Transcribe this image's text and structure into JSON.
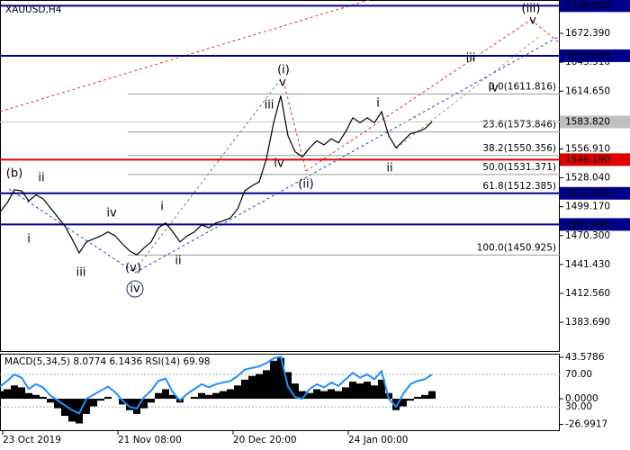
{
  "chart_data": [
    {
      "type": "line",
      "title": "XAUUSD,H4",
      "color": "#000000",
      "values": [
        1494,
        1503,
        1516,
        1515,
        1505,
        1511,
        1507,
        1498,
        1489,
        1480,
        1467,
        1453,
        1464,
        1467,
        1470,
        1474,
        1470,
        1462,
        1455,
        1451,
        1458,
        1464,
        1478,
        1483,
        1474,
        1464,
        1470,
        1474,
        1481,
        1478,
        1483,
        1485,
        1488,
        1497,
        1515,
        1520,
        1524,
        1547,
        1583,
        1610,
        1570,
        1554,
        1549,
        1558,
        1565,
        1561,
        1567,
        1563,
        1574,
        1588,
        1583,
        1588,
        1583,
        1594,
        1570,
        1558,
        1565,
        1572,
        1574,
        1577,
        1584
      ],
      "xlim": [
        0,
        77.75
      ],
      "xticks": [
        {
          "value": 0,
          "label": "23 Oct 2019"
        },
        {
          "value": 16,
          "label": "21 Nov 08:00"
        },
        {
          "value": 32,
          "label": "20 Dec 20:00"
        },
        {
          "value": 48,
          "label": "24 Jan 00:00"
        }
      ],
      "ylim": [
        1355.0,
        1705.7
      ],
      "yticks": [
        {
          "value": 1672.39,
          "label": "1672.390"
        },
        {
          "value": 1643.51,
          "label": "1643.510"
        },
        {
          "value": 1614.65,
          "label": "1614.650"
        },
        {
          "value": 1556.91,
          "label": "1556.910"
        },
        {
          "value": 1528.04,
          "label": "1528.040"
        },
        {
          "value": 1499.17,
          "label": "1499.170"
        },
        {
          "value": 1470.3,
          "label": "1470.300"
        },
        {
          "value": 1441.43,
          "label": "1441.430"
        },
        {
          "value": 1412.56,
          "label": "1412.560"
        },
        {
          "value": 1383.69,
          "label": "1383.690"
        }
      ],
      "levels": [
        {
          "value": 1700,
          "label": "1700.000",
          "color": "#00008b"
        },
        {
          "value": 1650,
          "label": "1650.000",
          "color": "#00008b"
        },
        {
          "value": 1546.19,
          "label": "1546.190",
          "color": "#e00000"
        },
        {
          "value": 1512.55,
          "label": "1512.550",
          "color": "#00008b"
        },
        {
          "value": 1481.446,
          "label": "1481.446",
          "color": "#00008b"
        }
      ],
      "current_price": {
        "value": 1583.82,
        "label": "1583.820"
      },
      "fib_levels": [
        {
          "value": 1611.816,
          "label": "0.0(1611.816)"
        },
        {
          "value": 1573.846,
          "label": "23.6(1573.846)"
        },
        {
          "value": 1550.356,
          "label": "38.2(1550.356)"
        },
        {
          "value": 1531.371,
          "label": "50.0(1531.371)"
        },
        {
          "value": 1512.385,
          "label": "61.8(1512.385)"
        },
        {
          "value": 1450.925,
          "label": "100.0(1450.925)"
        }
      ],
      "annotations": [
        "(b)",
        "ii",
        "i",
        "iv",
        "iii",
        "(v)",
        "iv",
        "i",
        "ii",
        "iii",
        "(i)",
        "v",
        "iv",
        "(ii)",
        "i",
        "ii",
        "iii",
        "iv",
        "v",
        "(iii)"
      ]
    },
    {
      "type": "macd",
      "title": "MACD(5,34,5) 8.0774 6.1436 RSI(14) 69.98",
      "series": [
        {
          "color": "#000000",
          "values": [
            8,
            10,
            14,
            12,
            6,
            4,
            2,
            -4,
            -10,
            -18,
            -24,
            -26,
            -16,
            -8,
            -2,
            2,
            0,
            -6,
            -12,
            -16,
            -10,
            -4,
            6,
            10,
            4,
            -4,
            0,
            2,
            6,
            4,
            6,
            8,
            10,
            14,
            20,
            24,
            26,
            30,
            40,
            43,
            28,
            16,
            8,
            6,
            10,
            8,
            10,
            8,
            12,
            18,
            16,
            18,
            14,
            20,
            6,
            -12,
            -8,
            -2,
            2,
            4,
            8
          ]
        },
        {
          "color": "#1e90ff",
          "axis": "y2",
          "values": [
            55,
            62,
            70,
            66,
            52,
            58,
            54,
            44,
            38,
            32,
            26,
            22,
            40,
            45,
            50,
            55,
            48,
            38,
            30,
            28,
            42,
            50,
            62,
            65,
            48,
            38,
            46,
            52,
            58,
            54,
            58,
            60,
            62,
            68,
            76,
            78,
            80,
            84,
            90,
            92,
            55,
            42,
            40,
            52,
            58,
            54,
            60,
            56,
            64,
            72,
            66,
            70,
            64,
            74,
            40,
            30,
            46,
            58,
            62,
            64,
            70
          ]
        }
      ],
      "ylim": [
        -33.1,
        47.4
      ],
      "yticks": [
        43.5786,
        {
          "value": 0,
          "label": "0.0000"
        },
        -26.9917
      ],
      "y2lim": [
        1.2,
        95.6
      ],
      "y2ticks": [
        {
          "value": 70,
          "label": "70.00"
        },
        {
          "value": 30,
          "label": "30.00"
        }
      ]
    }
  ]
}
